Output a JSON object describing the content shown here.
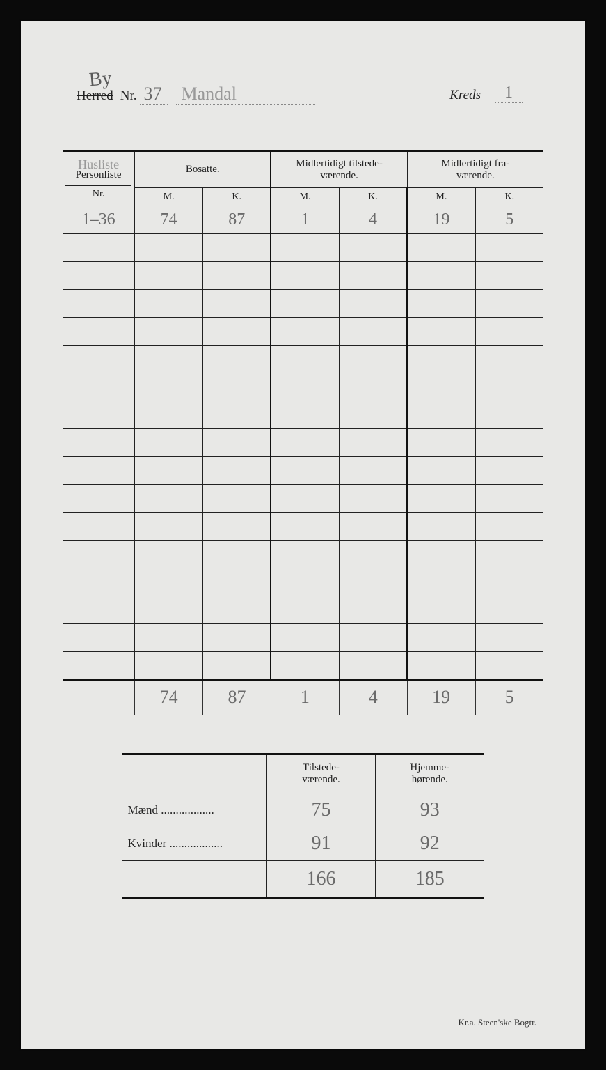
{
  "header": {
    "annotation_above": "By",
    "herred_label": "Herred",
    "nr_label": "Nr.",
    "nr_value": "37",
    "name_value": "Mandal",
    "kreds_label": "Kreds",
    "kreds_value": "1"
  },
  "main_table": {
    "col1_hw": "Husliste",
    "col1_label": "Personliste",
    "col1_sub": "Nr.",
    "group_headers": [
      "Bosatte.",
      "Midlertidigt tilstede-\nværende.",
      "Midlertidigt fra-\nværende."
    ],
    "sub_headers": [
      "M.",
      "K.",
      "M.",
      "K.",
      "M.",
      "K."
    ],
    "data_row": {
      "nr": "1–36",
      "vals": [
        "74",
        "87",
        "1",
        "4",
        "19",
        "5"
      ]
    },
    "empty_rows": 16,
    "totals": [
      "74",
      "87",
      "1",
      "4",
      "19",
      "5"
    ]
  },
  "summary": {
    "col_headers": [
      "Tilstede-\nværende.",
      "Hjemme-\nhørende."
    ],
    "rows": [
      {
        "label": "Mænd",
        "vals": [
          "75",
          "93"
        ]
      },
      {
        "label": "Kvinder",
        "vals": [
          "91",
          "92"
        ]
      }
    ],
    "totals": [
      "166",
      "185"
    ]
  },
  "footer": "Kr.a.   Steen'ske Bogtr.",
  "colors": {
    "page_bg": "#e8e8e6",
    "ink": "#222222",
    "handwriting": "#6a6a6a",
    "faint_hw": "#999999"
  }
}
